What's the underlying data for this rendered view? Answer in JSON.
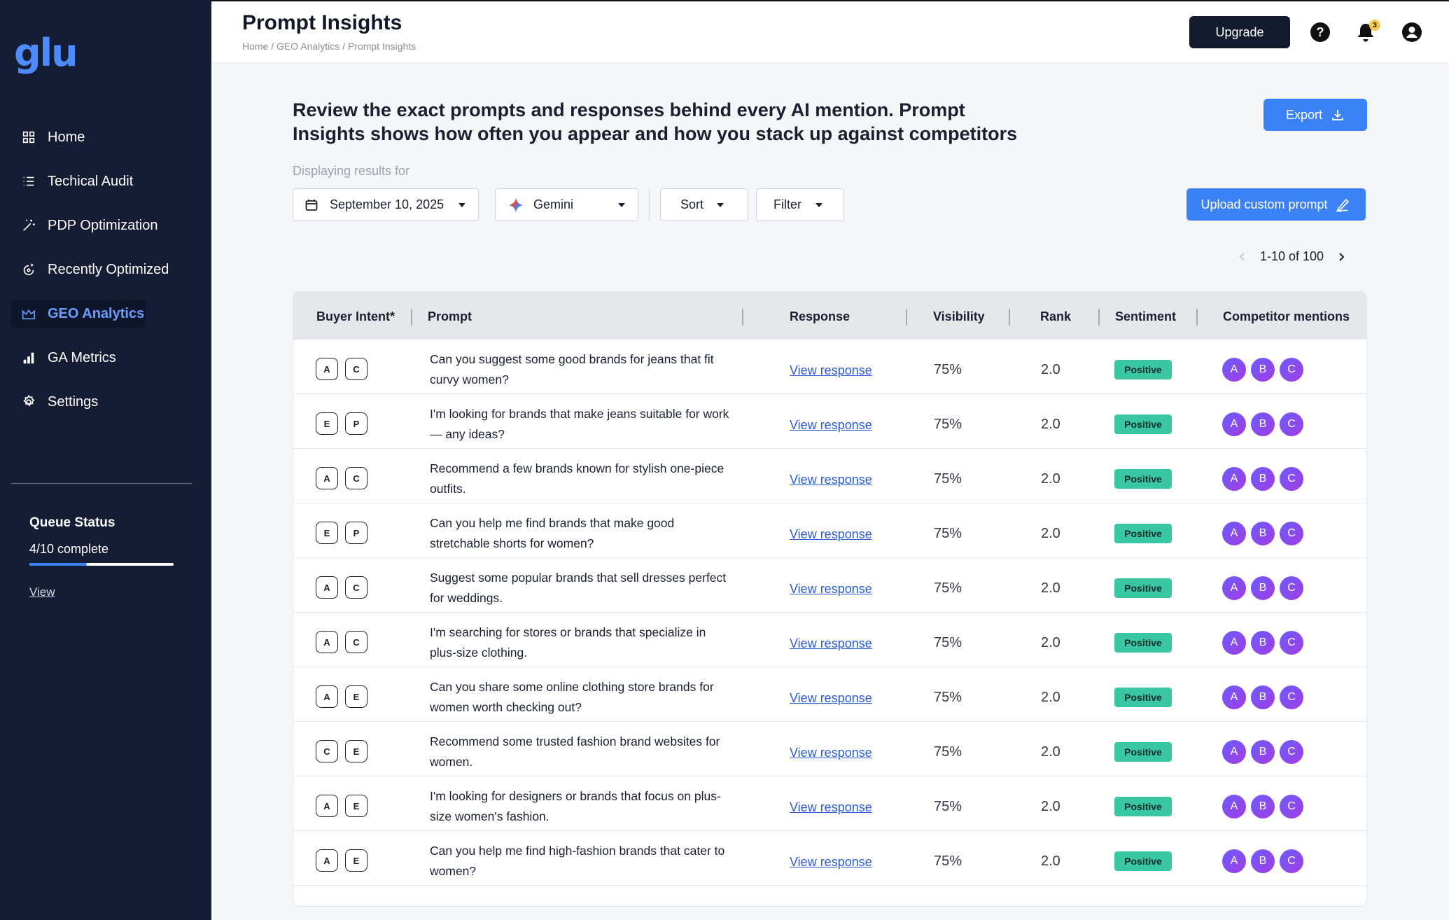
{
  "app": {
    "logo": "glu"
  },
  "sidebar": {
    "items": [
      {
        "label": "Home",
        "icon": "grid-icon",
        "active": false
      },
      {
        "label": "Techical Audit",
        "icon": "list-icon",
        "active": false
      },
      {
        "label": "PDP Optimization",
        "icon": "magic-wand-icon",
        "active": false
      },
      {
        "label": "Recently Optimized",
        "icon": "refresh-sparkle-icon",
        "active": false
      },
      {
        "label": "GEO Analytics",
        "icon": "chart-area-icon",
        "active": true
      },
      {
        "label": "GA Metrics",
        "icon": "bar-chart-icon",
        "active": false
      },
      {
        "label": "Settings",
        "icon": "gear-icon",
        "active": false
      }
    ],
    "queue": {
      "title": "Queue Status",
      "count": "4/10 complete",
      "progress": 0.4,
      "link": "View"
    }
  },
  "header": {
    "title": "Prompt Insights",
    "breadcrumb": "Home / GEO Analytics / Prompt Insights",
    "upgrade_label": "Upgrade",
    "notification_count": "3"
  },
  "main": {
    "intro": "Review the exact prompts and responses behind every AI mention. Prompt Insights shows how often you appear and how you stack up against competitors",
    "export_label": "Export",
    "display_label": "Displaying results for",
    "date": "September 10, 2025",
    "model": "Gemini",
    "sort_label": "Sort",
    "filter_label": "Filter",
    "upload_label": "Upload custom prompt",
    "pager": "1-10 of 100"
  },
  "table": {
    "headers": [
      "Buyer Intent*",
      "Prompt",
      "Response",
      "Visibility",
      "Rank",
      "Sentiment",
      "Competitor mentions"
    ],
    "rows": [
      {
        "intent": [
          "A",
          "C"
        ],
        "prompt": "Can you suggest some good brands for jeans that fit curvy women?",
        "response": "View response",
        "visibility": "75%",
        "rank": "2.0",
        "sentiment": "Positive",
        "competitors": [
          "A",
          "B",
          "C"
        ]
      },
      {
        "intent": [
          "E",
          "P"
        ],
        "prompt": "I'm looking for brands that make jeans suitable for work — any ideas?",
        "response": "View response",
        "visibility": "75%",
        "rank": "2.0",
        "sentiment": "Positive",
        "competitors": [
          "A",
          "B",
          "C"
        ]
      },
      {
        "intent": [
          "A",
          "C"
        ],
        "prompt": "Recommend a few brands known for stylish one-piece outfits.",
        "response": "View response",
        "visibility": "75%",
        "rank": "2.0",
        "sentiment": "Positive",
        "competitors": [
          "A",
          "B",
          "C"
        ]
      },
      {
        "intent": [
          "E",
          "P"
        ],
        "prompt": "Can you help me find brands that make good stretchable shorts for women?",
        "response": "View response",
        "visibility": "75%",
        "rank": "2.0",
        "sentiment": "Positive",
        "competitors": [
          "A",
          "B",
          "C"
        ]
      },
      {
        "intent": [
          "A",
          "C"
        ],
        "prompt": "Suggest some popular brands that sell dresses perfect for weddings.",
        "response": "View response",
        "visibility": "75%",
        "rank": "2.0",
        "sentiment": "Positive",
        "competitors": [
          "A",
          "B",
          "C"
        ]
      },
      {
        "intent": [
          "A",
          "C"
        ],
        "prompt": "I'm searching for stores or brands that specialize in plus-size clothing.",
        "response": "View response",
        "visibility": "75%",
        "rank": "2.0",
        "sentiment": "Positive",
        "competitors": [
          "A",
          "B",
          "C"
        ]
      },
      {
        "intent": [
          "A",
          "E"
        ],
        "prompt": "Can you share some online clothing store brands for women worth checking out?",
        "response": "View response",
        "visibility": "75%",
        "rank": "2.0",
        "sentiment": "Positive",
        "competitors": [
          "A",
          "B",
          "C"
        ]
      },
      {
        "intent": [
          "C",
          "E"
        ],
        "prompt": "Recommend some trusted fashion brand websites for women.",
        "response": "View response",
        "visibility": "75%",
        "rank": "2.0",
        "sentiment": "Positive",
        "competitors": [
          "A",
          "B",
          "C"
        ]
      },
      {
        "intent": [
          "A",
          "E"
        ],
        "prompt": "I'm looking for designers or brands that focus on plus-size women's fashion.",
        "response": "View response",
        "visibility": "75%",
        "rank": "2.0",
        "sentiment": "Positive",
        "competitors": [
          "A",
          "B",
          "C"
        ]
      },
      {
        "intent": [
          "A",
          "E"
        ],
        "prompt": "Can you help me find high-fashion brands that cater to women?",
        "response": "View response",
        "visibility": "75%",
        "rank": "2.0",
        "sentiment": "Positive",
        "competitors": [
          "A",
          "B",
          "C"
        ]
      }
    ]
  },
  "colors": {
    "sidebar_bg": "#141d33",
    "accent": "#3b82f6",
    "positive": "#39c7a3"
  }
}
